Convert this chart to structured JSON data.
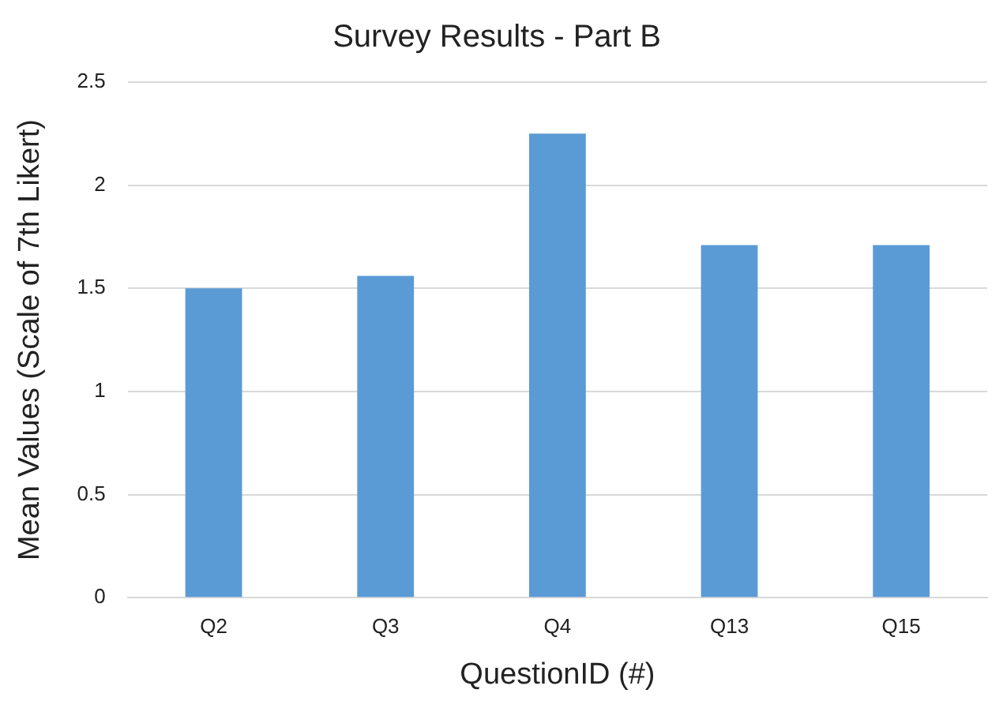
{
  "chart_data": {
    "type": "bar",
    "title": "Survey Results - Part B",
    "xlabel": "QuestionID (#)",
    "ylabel": "Mean Values (Scale of 7th Likert)",
    "categories": [
      "Q2",
      "Q3",
      "Q4",
      "Q13",
      "Q15"
    ],
    "values": [
      1.5,
      1.56,
      2.25,
      1.71,
      1.71
    ],
    "color": "#5b9bd5",
    "ylim": [
      0,
      2.5
    ],
    "yticks": [
      0,
      0.5,
      1,
      1.5,
      2,
      2.5
    ],
    "grid": "y",
    "legend": false
  }
}
